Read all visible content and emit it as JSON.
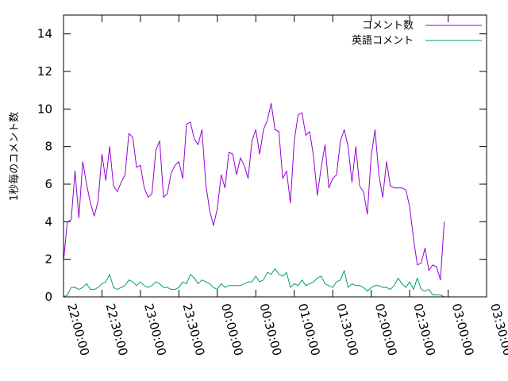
{
  "chart_data": {
    "type": "line",
    "xlabel": "",
    "ylabel": "1秒毎のコメント数",
    "ylim": [
      0,
      15
    ],
    "yticks": [
      "0",
      "2",
      "4",
      "6",
      "8",
      "10",
      "12",
      "14"
    ],
    "xticks": [
      "22:00:00",
      "22:30:00",
      "23:00:00",
      "23:30:00",
      "00:00:00",
      "00:30:00",
      "01:00:00",
      "01:30:00",
      "02:00:00",
      "02:30:00",
      "03:00:00",
      "03:30:00"
    ],
    "xlim_minutes": [
      0,
      330
    ],
    "x_step_minutes": 3,
    "legend_position": "top-right",
    "grid": false,
    "series": [
      {
        "name": "コメント数",
        "color": "#9400d3",
        "values": [
          1.9,
          4.0,
          4.1,
          6.7,
          4.2,
          7.2,
          6.0,
          5.0,
          4.3,
          5.1,
          7.6,
          6.2,
          8.0,
          5.9,
          5.6,
          6.1,
          6.5,
          8.7,
          8.5,
          6.9,
          7.0,
          5.8,
          5.3,
          5.5,
          7.8,
          8.3,
          5.3,
          5.5,
          6.6,
          7.0,
          7.2,
          6.3,
          9.2,
          9.3,
          8.4,
          8.1,
          8.9,
          6.0,
          4.6,
          3.8,
          4.7,
          6.5,
          5.8,
          7.7,
          7.6,
          6.5,
          7.4,
          7.0,
          6.3,
          8.3,
          8.9,
          7.6,
          8.9,
          9.4,
          10.3,
          8.9,
          8.8,
          6.3,
          6.7,
          5.0,
          8.3,
          9.7,
          9.8,
          8.6,
          8.8,
          7.5,
          5.4,
          6.9,
          8.1,
          5.8,
          6.3,
          6.5,
          8.3,
          8.9,
          8.0,
          6.1,
          8.0,
          5.9,
          5.6,
          4.4,
          7.5,
          8.9,
          6.5,
          5.3,
          7.2,
          5.9,
          5.8,
          5.8,
          5.8,
          5.7,
          4.8,
          3.1,
          1.7,
          1.8,
          2.6,
          1.4,
          1.7,
          1.6,
          0.9,
          4.0
        ]
      },
      {
        "name": "英語コメント",
        "color": "#009e73",
        "values": [
          0.0,
          0.1,
          0.5,
          0.5,
          0.4,
          0.5,
          0.7,
          0.4,
          0.4,
          0.5,
          0.7,
          0.8,
          1.2,
          0.5,
          0.4,
          0.5,
          0.6,
          0.9,
          0.8,
          0.6,
          0.8,
          0.6,
          0.5,
          0.6,
          0.8,
          0.7,
          0.5,
          0.5,
          0.4,
          0.4,
          0.5,
          0.8,
          0.7,
          1.2,
          1.0,
          0.7,
          0.9,
          0.8,
          0.7,
          0.5,
          0.4,
          0.7,
          0.5,
          0.6,
          0.6,
          0.6,
          0.6,
          0.7,
          0.8,
          0.8,
          1.1,
          0.8,
          0.9,
          1.3,
          1.2,
          1.5,
          1.2,
          1.1,
          1.3,
          0.5,
          0.7,
          0.6,
          0.9,
          0.6,
          0.7,
          0.8,
          1.0,
          1.1,
          0.7,
          0.6,
          0.5,
          0.8,
          0.9,
          1.4,
          0.5,
          0.7,
          0.6,
          0.6,
          0.5,
          0.3,
          0.5,
          0.6,
          0.6,
          0.5,
          0.5,
          0.4,
          0.6,
          1.0,
          0.7,
          0.5,
          0.8,
          0.4,
          1.0,
          0.4,
          0.3,
          0.4,
          0.1,
          0.1,
          0.1,
          0.0
        ]
      }
    ]
  }
}
